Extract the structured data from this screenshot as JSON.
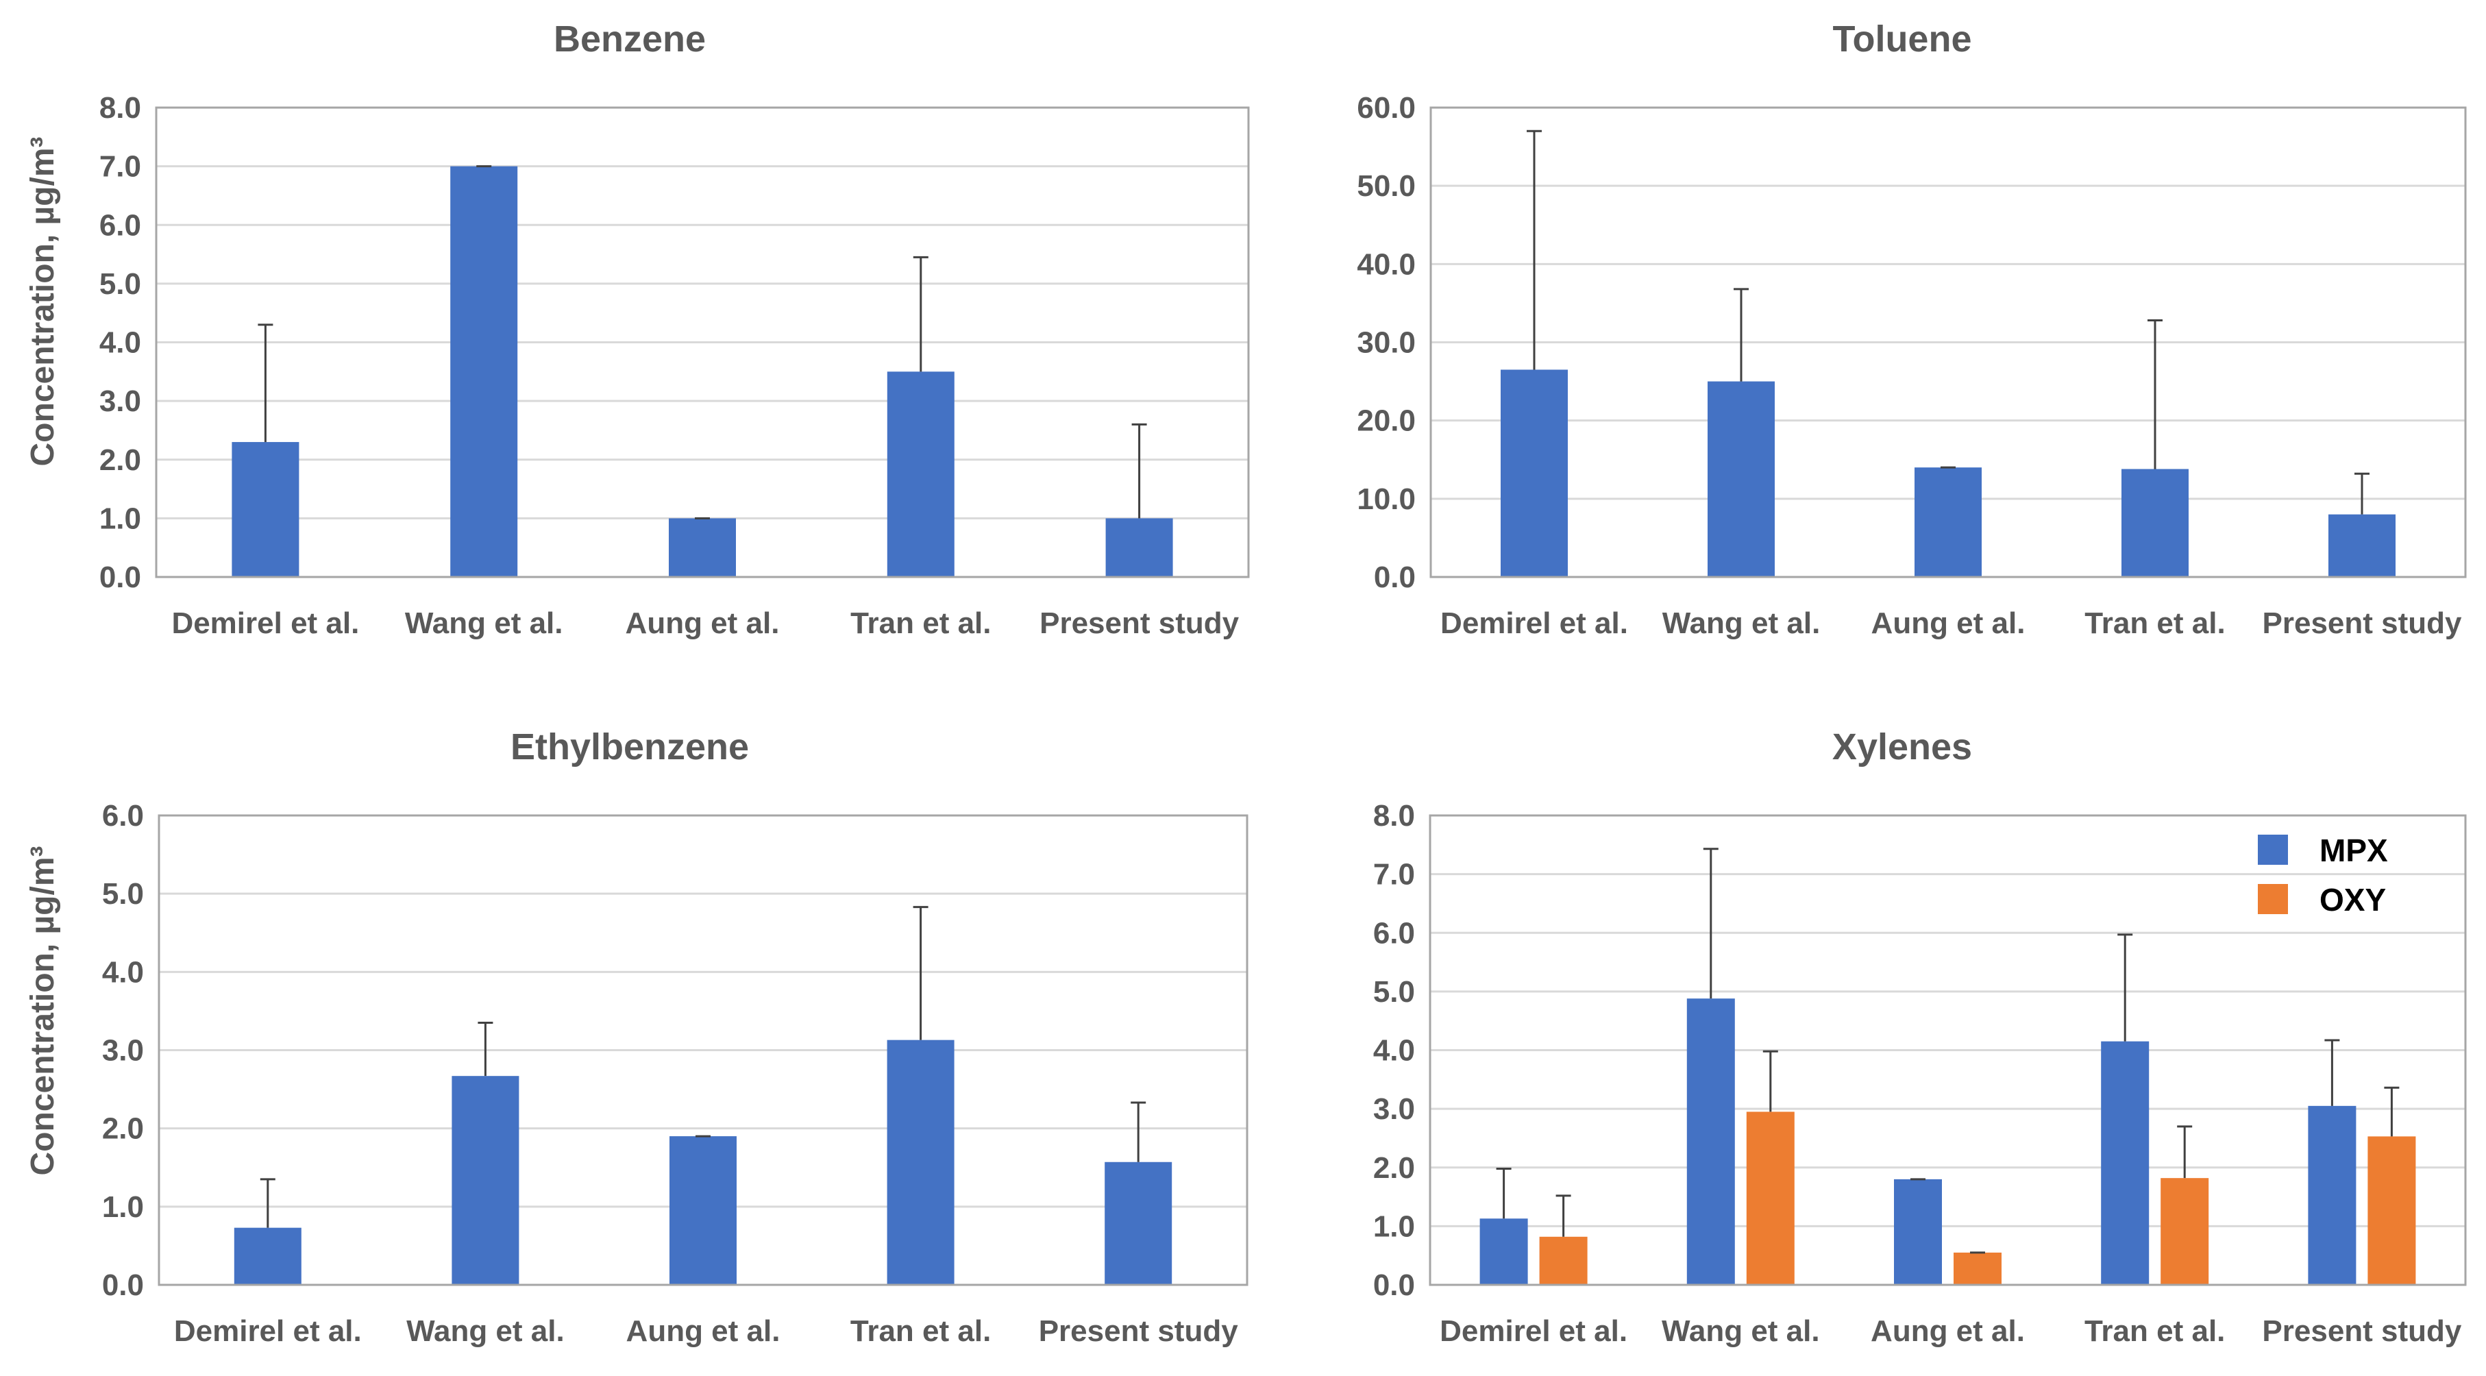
{
  "colors": {
    "mpx": "#4472c4",
    "oxy": "#ed7d31",
    "grid": "#d9d9d9",
    "axis": "#a6a6a6",
    "text": "#595959",
    "error": "#404040"
  },
  "chart_data": [
    {
      "type": "bar",
      "title": "Benzene",
      "ylabel": "Concentration, µg/m³",
      "ylim": [
        0,
        8
      ],
      "ytick_step": 1,
      "ytick_labels": [
        "0.0",
        "1.0",
        "2.0",
        "3.0",
        "4.0",
        "5.0",
        "6.0",
        "7.0",
        "8.0"
      ],
      "categories": [
        "Demirel et al.",
        "Wang et al.",
        "Aung et al.",
        "Tran et al.",
        "Present study"
      ],
      "series": [
        {
          "name": "",
          "color": "#4472c4",
          "values": [
            2.3,
            7.0,
            1.0,
            3.5,
            1.0
          ],
          "error_upper": [
            2.0,
            0.0,
            0.0,
            1.95,
            1.6
          ]
        }
      ]
    },
    {
      "type": "bar",
      "title": "Toluene",
      "ylabel": "",
      "ylim": [
        0,
        60
      ],
      "ytick_step": 10,
      "ytick_labels": [
        "0.0",
        "10.0",
        "20.0",
        "30.0",
        "40.0",
        "50.0",
        "60.0"
      ],
      "categories": [
        "Demirel et al.",
        "Wang et al.",
        "Aung et al.",
        "Tran et al.",
        "Present study"
      ],
      "series": [
        {
          "name": "",
          "color": "#4472c4",
          "values": [
            26.5,
            25.0,
            14.0,
            13.8,
            8.0
          ],
          "error_upper": [
            30.5,
            11.8,
            0.0,
            19.0,
            5.2
          ]
        }
      ]
    },
    {
      "type": "bar",
      "title": "Ethylbenzene",
      "ylabel": "Concentration, µg/m³",
      "ylim": [
        0,
        6
      ],
      "ytick_step": 1,
      "ytick_labels": [
        "0.0",
        "1.0",
        "2.0",
        "3.0",
        "4.0",
        "5.0",
        "6.0"
      ],
      "categories": [
        "Demirel et al.",
        "Wang et al.",
        "Aung et al.",
        "Tran et al.",
        "Present study"
      ],
      "series": [
        {
          "name": "",
          "color": "#4472c4",
          "values": [
            0.73,
            2.67,
            1.9,
            3.13,
            1.57
          ],
          "error_upper": [
            0.62,
            0.68,
            0.0,
            1.7,
            0.76
          ]
        }
      ]
    },
    {
      "type": "bar",
      "title": "Xylenes",
      "ylabel": "",
      "ylim": [
        0,
        8
      ],
      "ytick_step": 1,
      "ytick_labels": [
        "0.0",
        "1.0",
        "2.0",
        "3.0",
        "4.0",
        "5.0",
        "6.0",
        "7.0",
        "8.0"
      ],
      "legend": "top-right",
      "categories": [
        "Demirel et al.",
        "Wang et al.",
        "Aung et al.",
        "Tran et al.",
        "Present study"
      ],
      "series": [
        {
          "name": "MPX",
          "color": "#4472c4",
          "values": [
            1.13,
            4.88,
            1.8,
            4.15,
            3.05
          ],
          "error_upper": [
            0.85,
            2.55,
            0.0,
            1.82,
            1.12
          ]
        },
        {
          "name": "OXY",
          "color": "#ed7d31",
          "values": [
            0.82,
            2.95,
            0.55,
            1.82,
            2.53
          ],
          "error_upper": [
            0.7,
            1.03,
            0.0,
            0.88,
            0.83
          ]
        }
      ]
    }
  ]
}
